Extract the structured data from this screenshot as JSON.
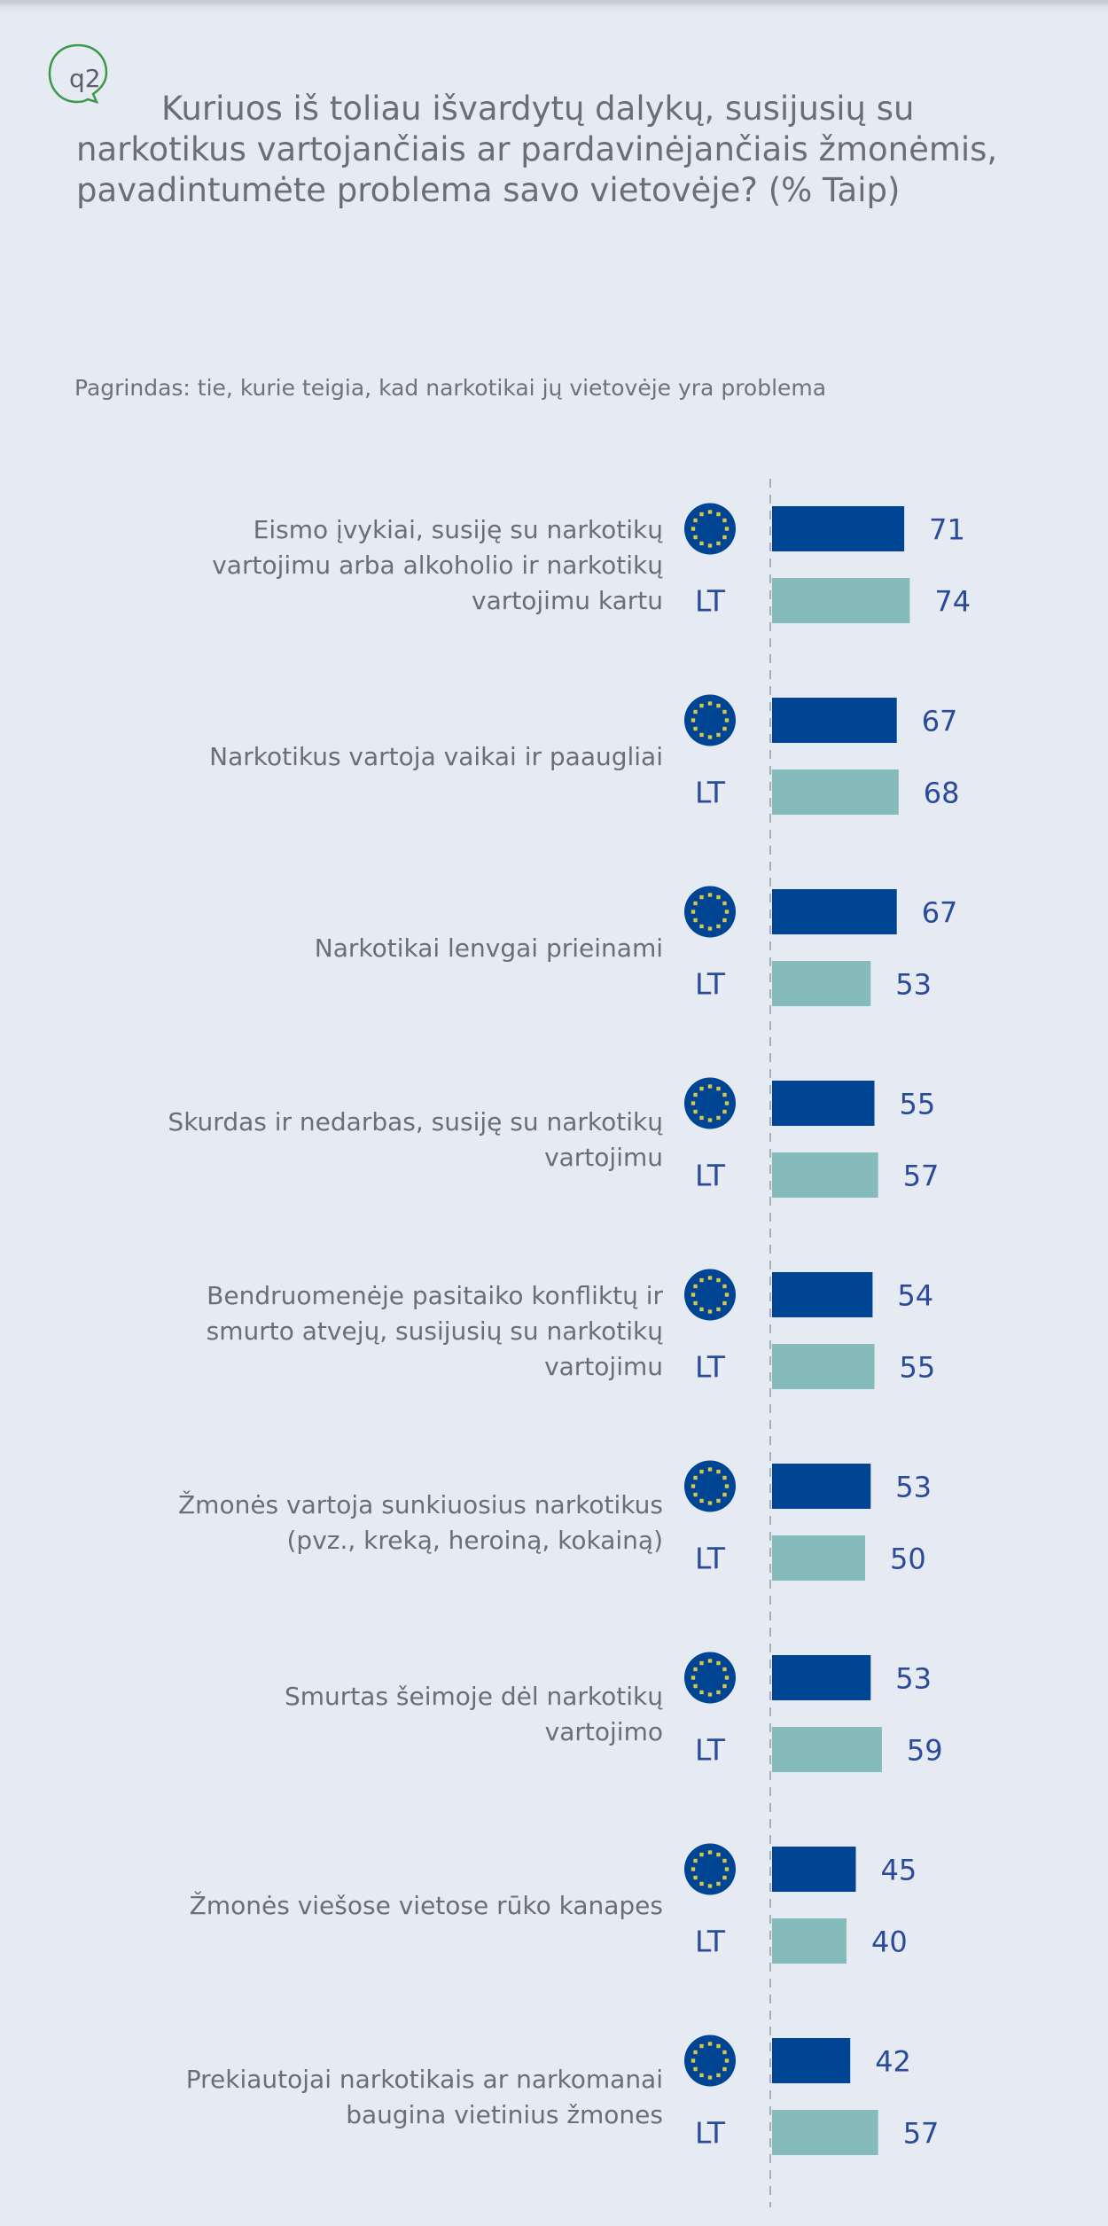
{
  "question": {
    "number": "q2",
    "title": "Kuriuos iš toliau išvardytų dalykų, susijusių su narkotikus vartojančiais ar pardavinėjančiais žmonėmis, pavadintumėte problema savo vietovėje? (% Taip)",
    "base_note": "Pagrindas: tie, kurie teigia, kad narkotikai jų vietovėje yra problema"
  },
  "colors": {
    "eu_bar": "#004494",
    "lt_bar": "#85bbbb",
    "value_text": "#2a4a9a",
    "bubble_outline": "#3a9a48",
    "background": "#e6eaf3"
  },
  "chart_data": {
    "type": "bar",
    "orientation": "horizontal",
    "title": "Kuriuos iš toliau išvardytų dalykų, susijusių su narkotikus vartojančiais ar pardavinėjančiais žmonėmis, pavadintumėte problema savo vietovėje? (% Taip)",
    "xlabel": "",
    "ylabel": "",
    "xlim": [
      0,
      100
    ],
    "grid": false,
    "legend": "inline-icons",
    "categories": [
      [
        "Eismo įvykiai, susiję su narkotikų",
        "vartojimu arba alkoholio ir narkotikų",
        "vartojimu kartu"
      ],
      [
        "Narkotikus vartoja vaikai ir paaugliai"
      ],
      [
        "Narkotikai lenvgai prieinami"
      ],
      [
        "Skurdas ir nedarbas, susiję su narkotikų",
        "vartojimu"
      ],
      [
        "Bendruomenėje pasitaiko konfliktų ir",
        "smurto atvejų, susijusių su narkotikų",
        "vartojimu"
      ],
      [
        "Žmonės vartoja sunkiuosius narkotikus",
        "(pvz., kreką, heroiną, kokainą)"
      ],
      [
        "Smurtas šeimoje dėl narkotikų",
        "vartojimo"
      ],
      [
        "Žmonės viešose vietose rūko kanapes"
      ],
      [
        "Prekiautojai narkotikais ar narkomanai",
        "baugina vietinius žmones"
      ]
    ],
    "series": [
      {
        "name": "EU",
        "icon": "eu-flag-icon",
        "values": [
          71,
          67,
          67,
          55,
          54,
          53,
          53,
          45,
          42
        ]
      },
      {
        "name": "LT",
        "values": [
          74,
          68,
          53,
          57,
          55,
          50,
          59,
          40,
          57
        ]
      }
    ]
  }
}
